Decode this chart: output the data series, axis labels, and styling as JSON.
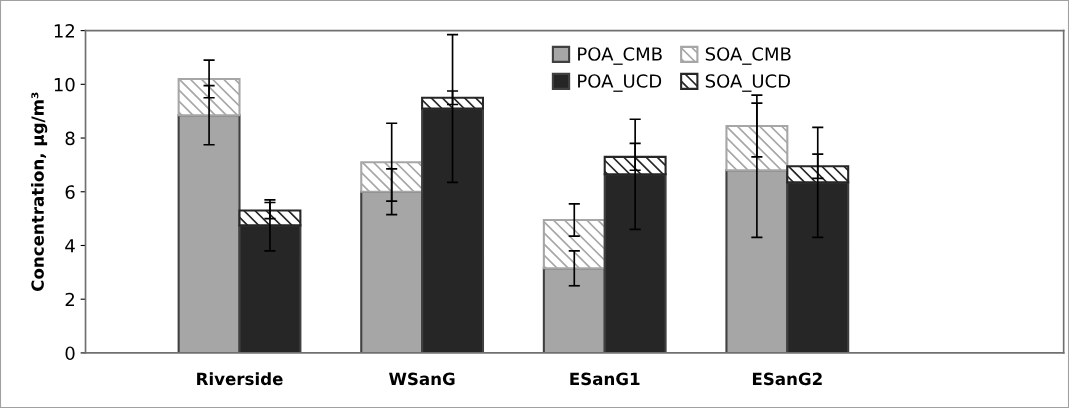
{
  "chart_data": {
    "type": "bar",
    "stacked": true,
    "ylabel": "Concentration, µg/m³",
    "categories": [
      null,
      null,
      null,
      null,
      null,
      null,
      null,
      null
    ],
    "annotations": [
      "Riverside",
      "WSanG",
      "ESanG1",
      "ESanG2"
    ],
    "ylim": [
      0,
      12
    ],
    "yticks": [
      0,
      2,
      4,
      6,
      8,
      10,
      12
    ],
    "grid": false,
    "legend": "top",
    "series": [
      {
        "name": "POA_CMB",
        "color": "#a6a6a6",
        "values": [
          8.85,
          null,
          6.0,
          null,
          3.15,
          null,
          6.8,
          null
        ],
        "errors": [
          1.1,
          null,
          0.85,
          null,
          0.65,
          null,
          2.5,
          null
        ]
      },
      {
        "name": "SOA_CMB",
        "color": "#a6a6a6",
        "values": [
          1.35,
          null,
          1.1,
          null,
          1.8,
          null,
          1.65,
          null
        ],
        "errors": [
          0.7,
          null,
          1.45,
          null,
          0.6,
          null,
          1.15,
          null
        ]
      },
      {
        "name": "POA_UCD",
        "color": "#262626",
        "values": [
          null,
          4.75,
          null,
          9.1,
          null,
          6.65,
          null,
          6.35
        ],
        "errors": [
          null,
          0.95,
          null,
          2.75,
          null,
          2.05,
          null,
          2.05
        ]
      },
      {
        "name": "SOA_UCD",
        "color": "#262626",
        "values": [
          null,
          0.55,
          null,
          0.4,
          null,
          0.65,
          null,
          0.6
        ],
        "errors": [
          null,
          0.3,
          null,
          0.25,
          null,
          0.5,
          null,
          0.45
        ]
      }
    ]
  }
}
